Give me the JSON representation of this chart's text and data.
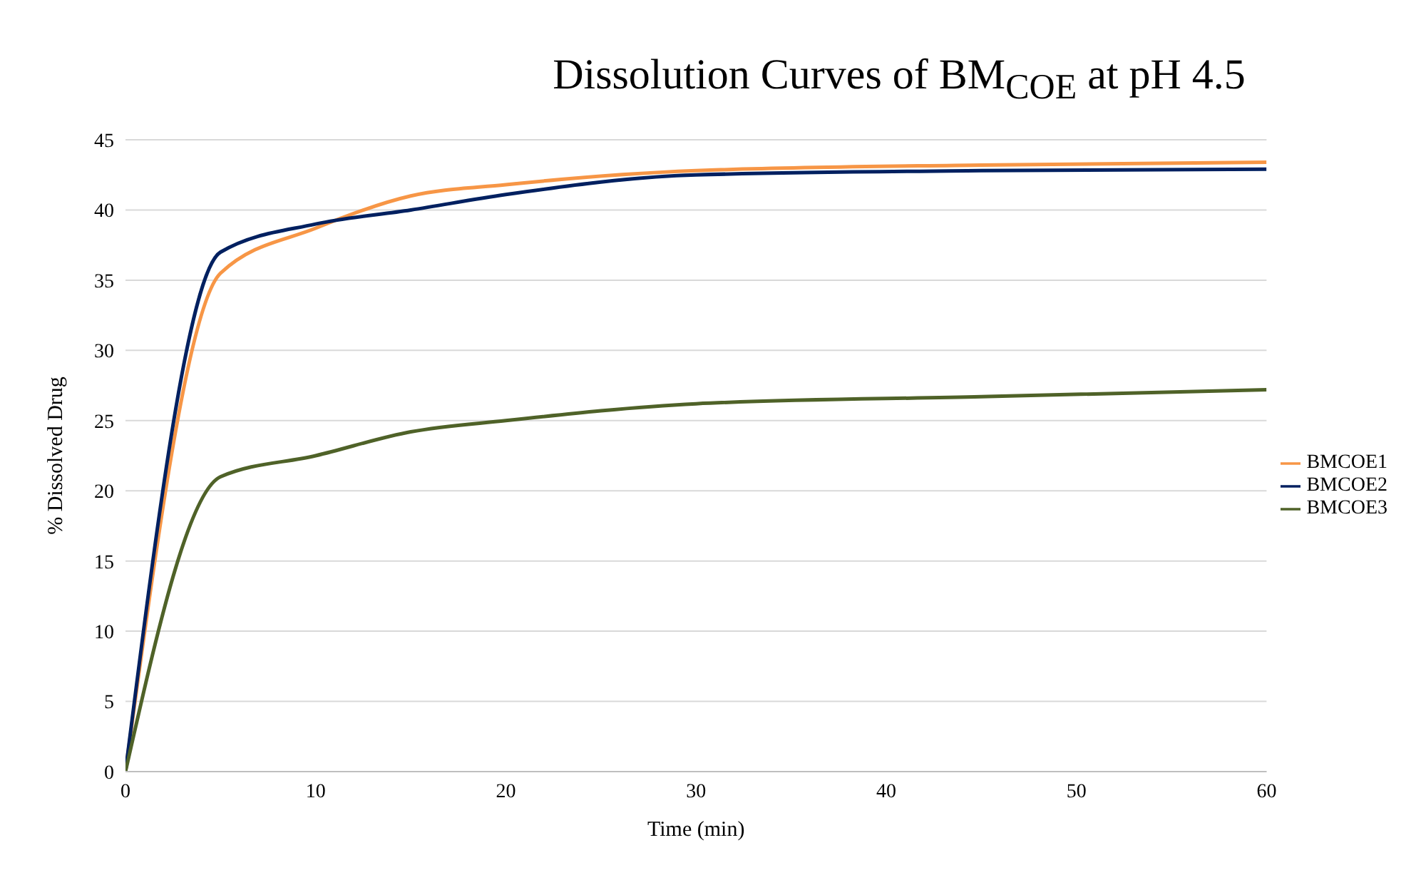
{
  "chart_data": {
    "type": "line",
    "title": "Dissolution Curves of BM$_{COE}$ at pH 4.5",
    "xlabel": "Time (min)",
    "ylabel": "% Dissolved Drug",
    "x": [
      0,
      5,
      10,
      15,
      20,
      30,
      45,
      60
    ],
    "series": [
      {
        "name": "BMCOE1",
        "color": "#f79646",
        "values": [
          0,
          35.5,
          38.7,
          41,
          41.8,
          42.8,
          43.2,
          43.4
        ]
      },
      {
        "name": "BMCOE2",
        "color": "#002060",
        "values": [
          0,
          37,
          39,
          40,
          41.1,
          42.5,
          42.8,
          42.9
        ]
      },
      {
        "name": "BMCOE3",
        "color": "#4f6228",
        "values": [
          0,
          21,
          22.5,
          24.2,
          25,
          26.2,
          26.7,
          27.2
        ]
      }
    ],
    "xlim": [
      0,
      60
    ],
    "xticks": [
      0,
      10,
      20,
      30,
      40,
      50,
      60
    ],
    "ylim": [
      0,
      45
    ],
    "yticks": [
      0,
      5,
      10,
      15,
      20,
      25,
      30,
      35,
      40,
      45
    ],
    "grid": "y",
    "legend": "right",
    "marker": "none",
    "line_style": "solid"
  }
}
